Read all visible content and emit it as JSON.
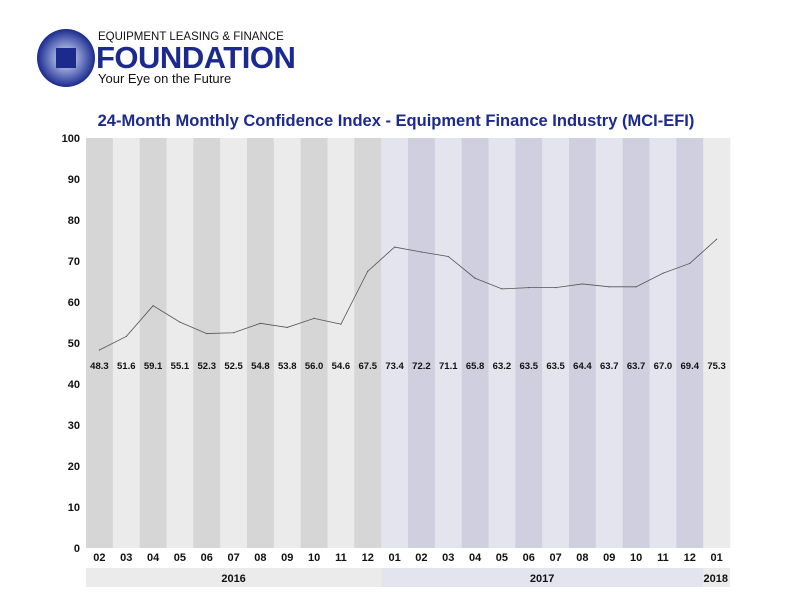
{
  "logo": {
    "line1": "EQUIPMENT LEASING & FINANCE",
    "line2": "FOUNDATION",
    "tagline": "Your Eye on the Future"
  },
  "chart_data": {
    "type": "line",
    "title": "24-Month Monthly Confidence Index - Equipment Finance Industry (MCI-EFI)",
    "categories": [
      "02",
      "03",
      "04",
      "05",
      "06",
      "07",
      "08",
      "09",
      "10",
      "11",
      "12",
      "01",
      "02",
      "03",
      "04",
      "05",
      "06",
      "07",
      "08",
      "09",
      "10",
      "11",
      "12",
      "01"
    ],
    "years": [
      {
        "label": "2016",
        "count": 11
      },
      {
        "label": "2017",
        "count": 12
      },
      {
        "label": "2018",
        "count": 1
      }
    ],
    "values": [
      48.3,
      51.6,
      59.1,
      55.1,
      52.3,
      52.5,
      54.8,
      53.8,
      56.0,
      54.6,
      67.5,
      73.4,
      72.2,
      71.1,
      65.8,
      63.2,
      63.5,
      63.5,
      64.4,
      63.7,
      63.7,
      67.0,
      69.4,
      75.3
    ],
    "value_labels": [
      "48.3",
      "51.6",
      "59.1",
      "55.1",
      "52.3",
      "52.5",
      "54.8",
      "53.8",
      "56.0",
      "54.6",
      "67.5",
      "73.4",
      "72.2",
      "71.1",
      "65.8",
      "63.2",
      "63.5",
      "63.5",
      "64.4",
      "63.7",
      "63.7",
      "67.0",
      "69.4",
      "75.3"
    ],
    "ylim": [
      0,
      100
    ],
    "yticks": [
      "0",
      "10",
      "20",
      "30",
      "40",
      "50",
      "60",
      "70",
      "80",
      "90",
      "100"
    ],
    "colors": {
      "title": "#1b2a8c",
      "line": "#555555",
      "gray_dark": "#d6d6d6",
      "gray_light": "#ebebeb",
      "lav_dark": "#cfcfdf",
      "lav_light": "#e4e4ee"
    }
  }
}
